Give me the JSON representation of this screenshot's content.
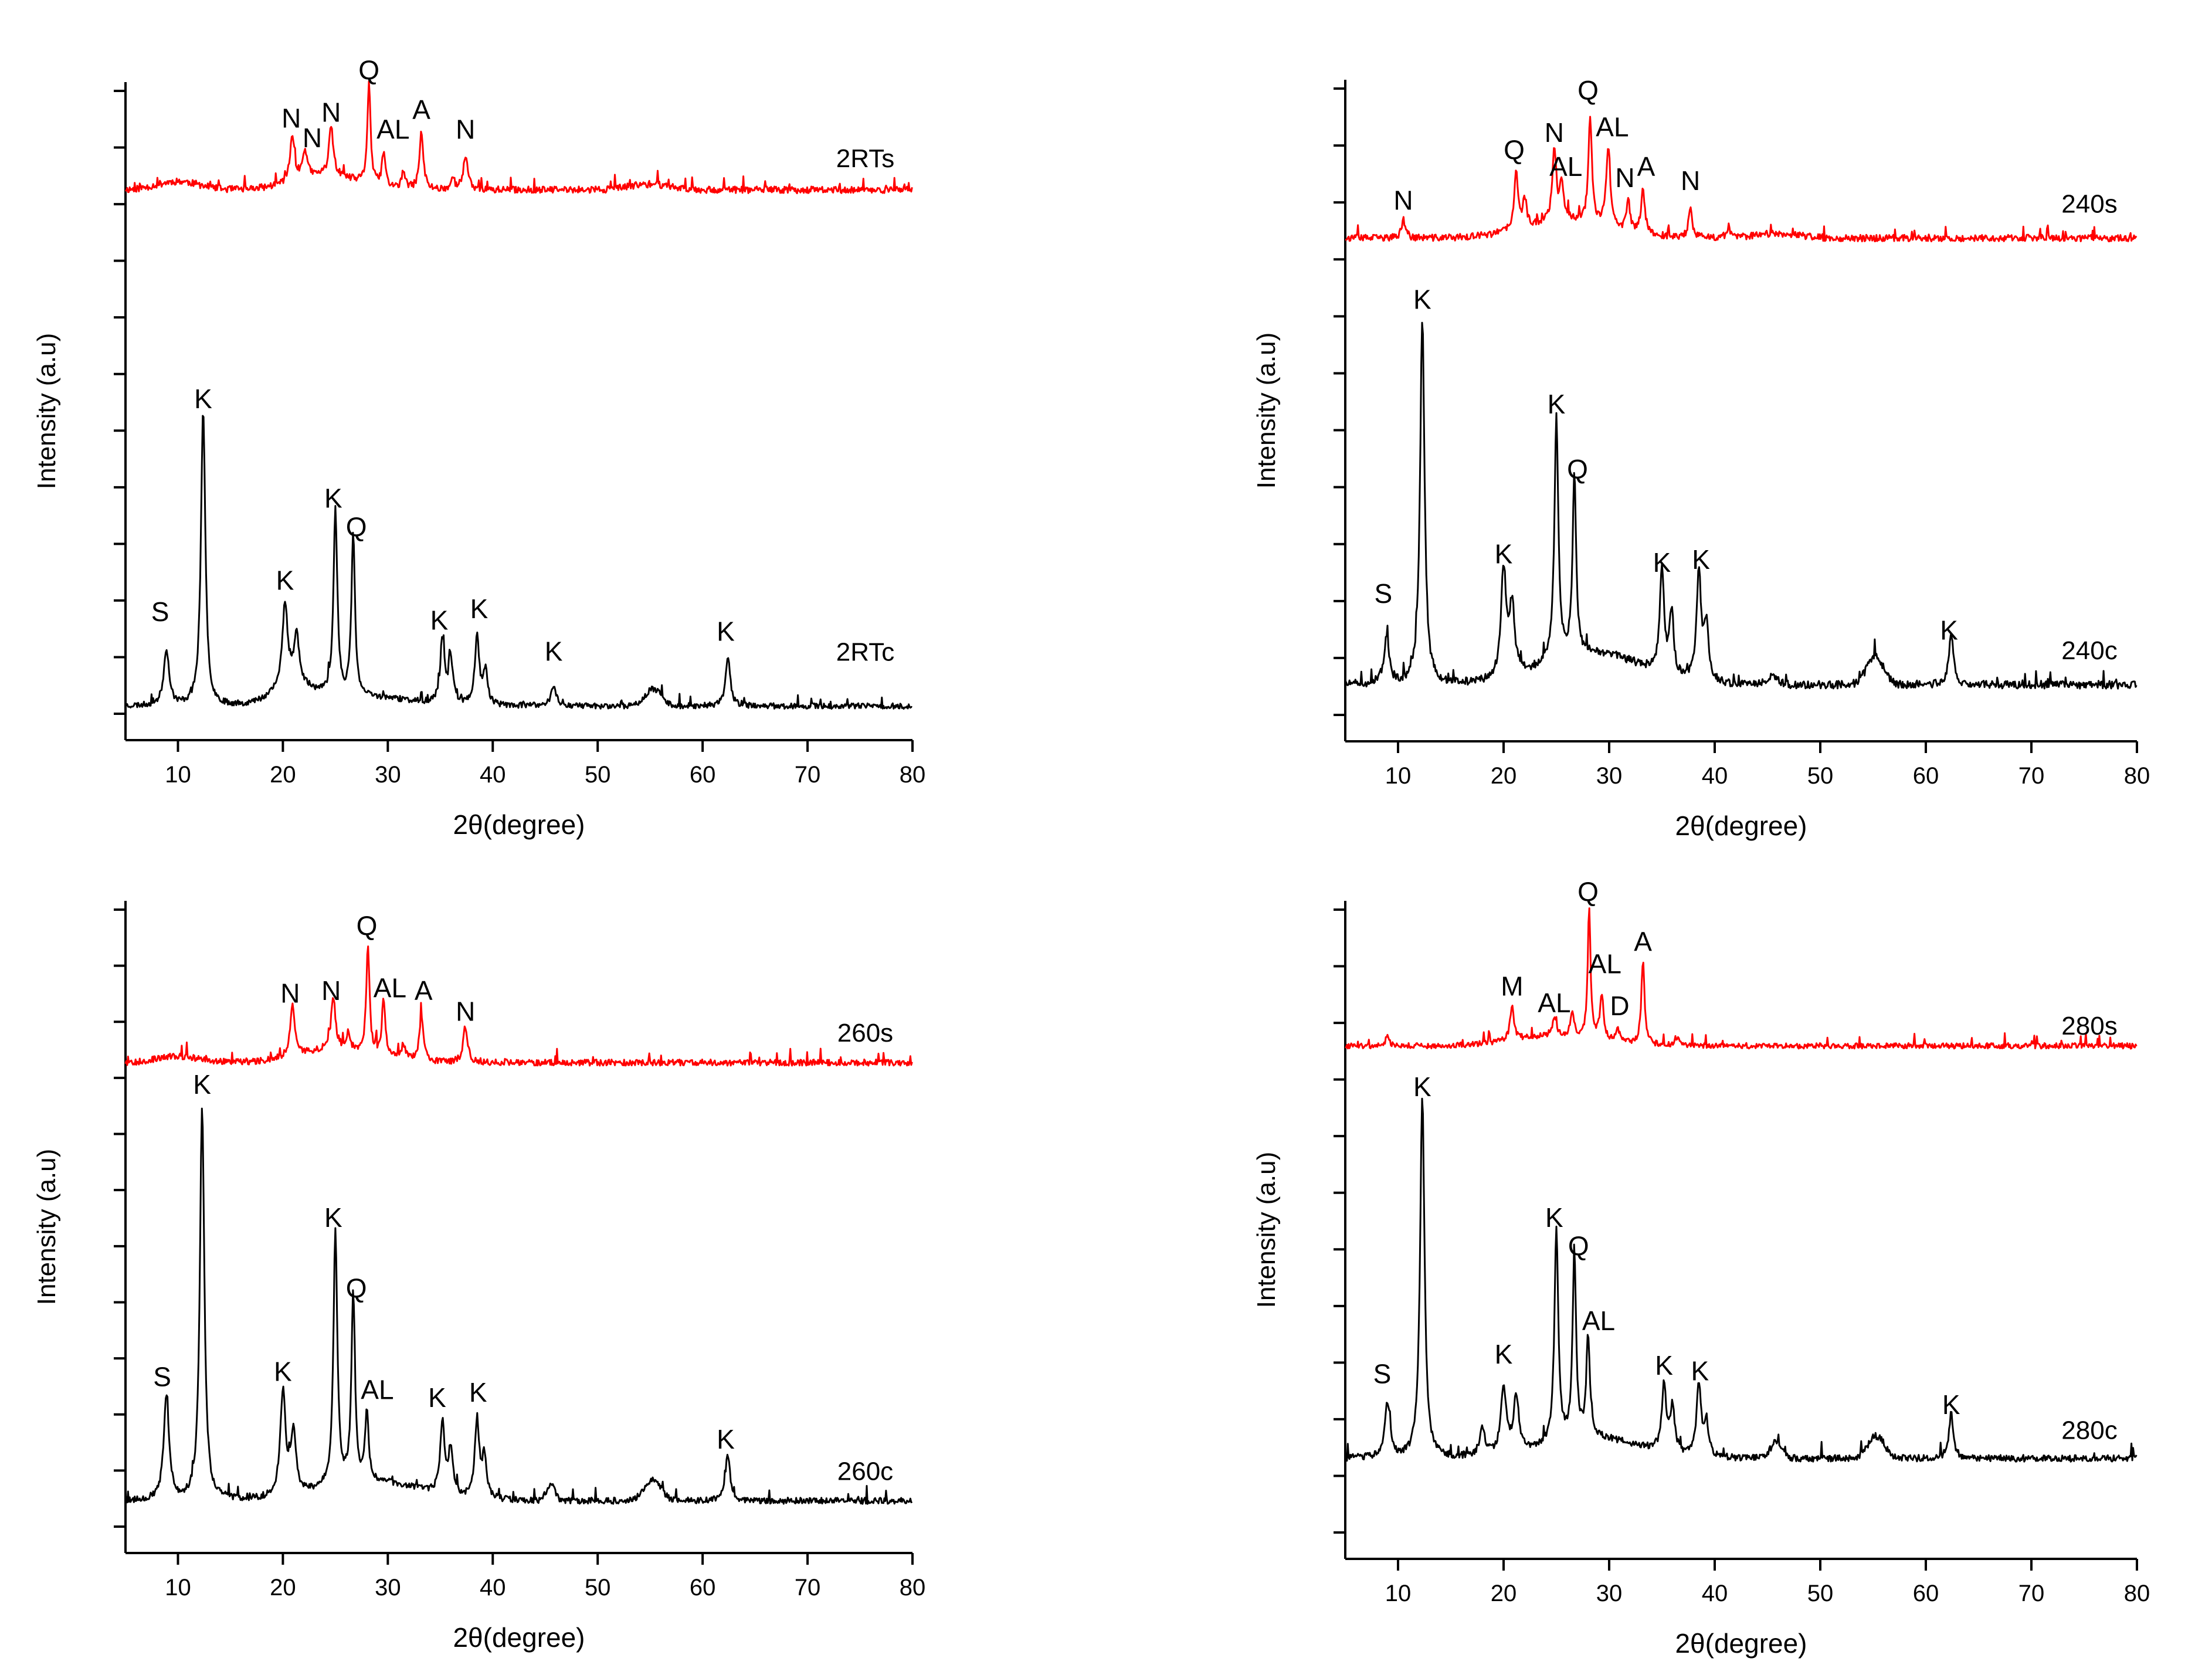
{
  "colors": {
    "top_series": "#ff0000",
    "bottom_series": "#000000",
    "axis": "#000000",
    "text": "#000000"
  },
  "chart_data": [
    {
      "type": "line",
      "panel": "top-left",
      "xlabel": "2θ(degree)",
      "ylabel": "Intensity (a.u)",
      "xlim": [
        5,
        80
      ],
      "ylim": [
        -0.6,
        11.0
      ],
      "x_ticks": [
        10,
        20,
        30,
        40,
        50,
        60,
        70,
        80
      ],
      "y_tick_count": 12,
      "series": [
        {
          "name": "2RTs",
          "color": "#ff0000",
          "base": 9.1,
          "noise": 0.06,
          "seed": 11,
          "label_at": [
            75.5,
            9.5
          ],
          "bumps": [
            [
              10,
              0.15,
              2.0
            ],
            [
              24,
              0.25,
              3.0
            ],
            [
              55,
              0.1,
              2.0
            ]
          ],
          "peaks": [
            {
              "x": 20.9,
              "h": 0.8,
              "w": 0.25,
              "label": "N",
              "lx": 20.8,
              "ly": 10.2
            },
            {
              "x": 22.1,
              "h": 0.5,
              "w": 0.25,
              "label": "N",
              "lx": 22.8,
              "ly": 9.85
            },
            {
              "x": 24.6,
              "h": 0.85,
              "w": 0.25,
              "label": "N",
              "lx": 24.6,
              "ly": 10.3
            },
            {
              "x": 28.2,
              "h": 1.8,
              "w": 0.18,
              "label": "Q",
              "lx": 28.2,
              "ly": 11.05
            },
            {
              "x": 29.6,
              "h": 0.6,
              "w": 0.2,
              "label": "AL",
              "lx": 30.5,
              "ly": 10.0
            },
            {
              "x": 33.2,
              "h": 1.0,
              "w": 0.22,
              "label": "A",
              "lx": 33.2,
              "ly": 10.35
            },
            {
              "x": 37.4,
              "h": 0.6,
              "w": 0.25,
              "label": "N",
              "lx": 37.4,
              "ly": 10.0
            },
            {
              "x": 31.5,
              "h": 0.3,
              "w": 0.2
            },
            {
              "x": 36.2,
              "h": 0.2,
              "w": 0.2
            }
          ]
        },
        {
          "name": "2RTc",
          "color": "#000000",
          "base": 0.0,
          "noise": 0.05,
          "seed": 23,
          "label_at": [
            75.5,
            0.8
          ],
          "bumps": [
            [
              21,
              0.3,
              2.0
            ],
            [
              28,
              0.15,
              4.0
            ],
            [
              55.3,
              0.3,
              0.8
            ]
          ],
          "peaks": [
            {
              "x": 8.9,
              "h": 1.0,
              "w": 0.3,
              "label": "S",
              "lx": 8.3,
              "ly": 1.5
            },
            {
              "x": 12.4,
              "h": 5.2,
              "w": 0.25,
              "label": "K",
              "lx": 12.4,
              "ly": 5.25
            },
            {
              "x": 20.2,
              "h": 1.5,
              "w": 0.3,
              "label": "K",
              "lx": 20.2,
              "ly": 2.05
            },
            {
              "x": 21.3,
              "h": 0.9,
              "w": 0.3
            },
            {
              "x": 25.0,
              "h": 3.3,
              "w": 0.22,
              "label": "K",
              "lx": 24.8,
              "ly": 3.5
            },
            {
              "x": 26.7,
              "h": 2.9,
              "w": 0.2,
              "label": "Q",
              "lx": 27.0,
              "ly": 3.0
            },
            {
              "x": 35.2,
              "h": 1.1,
              "w": 0.25,
              "label": "K",
              "lx": 34.9,
              "ly": 1.35
            },
            {
              "x": 36.0,
              "h": 0.8,
              "w": 0.25
            },
            {
              "x": 38.5,
              "h": 1.2,
              "w": 0.25,
              "label": "K",
              "lx": 38.7,
              "ly": 1.55
            },
            {
              "x": 39.3,
              "h": 0.6,
              "w": 0.25
            },
            {
              "x": 45.8,
              "h": 0.35,
              "w": 0.3,
              "label": "K",
              "lx": 45.8,
              "ly": 0.8
            },
            {
              "x": 62.4,
              "h": 0.9,
              "w": 0.25,
              "label": "K",
              "lx": 62.2,
              "ly": 1.15
            }
          ]
        }
      ]
    },
    {
      "type": "line",
      "panel": "top-right",
      "xlabel": "2θ(degree)",
      "ylabel": "Intensity (a.u)",
      "xlim": [
        5,
        80
      ],
      "ylim": [
        -1.0,
        10.7
      ],
      "x_ticks": [
        10,
        20,
        30,
        40,
        50,
        60,
        70,
        80
      ],
      "y_tick_count": 12,
      "series": [
        {
          "name": "240s",
          "color": "#ff0000",
          "base": 7.9,
          "noise": 0.06,
          "seed": 37,
          "label_at": [
            75.5,
            8.35
          ],
          "bumps": [
            [
              26,
              0.3,
              4.0
            ],
            [
              46,
              0.08,
              2.0
            ]
          ],
          "peaks": [
            {
              "x": 10.5,
              "h": 0.35,
              "w": 0.2,
              "label": "N",
              "lx": 10.5,
              "ly": 8.4
            },
            {
              "x": 21.2,
              "h": 1.0,
              "w": 0.22,
              "label": "Q",
              "lx": 21.0,
              "ly": 9.3
            },
            {
              "x": 22.0,
              "h": 0.5,
              "w": 0.2
            },
            {
              "x": 24.8,
              "h": 1.3,
              "w": 0.22,
              "label": "N",
              "lx": 24.8,
              "ly": 9.6
            },
            {
              "x": 25.5,
              "h": 0.7,
              "w": 0.2,
              "label": "AL",
              "lx": 25.9,
              "ly": 9.0
            },
            {
              "x": 28.2,
              "h": 1.9,
              "w": 0.2,
              "label": "Q",
              "lx": 28.0,
              "ly": 10.35
            },
            {
              "x": 29.9,
              "h": 1.4,
              "w": 0.22,
              "label": "AL",
              "lx": 30.3,
              "ly": 9.7
            },
            {
              "x": 31.8,
              "h": 0.55,
              "w": 0.2,
              "label": "N",
              "lx": 31.5,
              "ly": 8.8
            },
            {
              "x": 33.2,
              "h": 0.8,
              "w": 0.22,
              "label": "A",
              "lx": 33.5,
              "ly": 9.0
            },
            {
              "x": 37.7,
              "h": 0.55,
              "w": 0.2,
              "label": "N",
              "lx": 37.7,
              "ly": 8.75
            },
            {
              "x": 41.3,
              "h": 0.2,
              "w": 0.2
            }
          ]
        },
        {
          "name": "240c",
          "color": "#000000",
          "base": 0.0,
          "noise": 0.07,
          "seed": 51,
          "label_at": [
            75.5,
            0.45
          ],
          "bumps": [
            [
              28.5,
              0.55,
              4.5
            ],
            [
              55.2,
              0.5,
              0.8
            ],
            [
              45.5,
              0.15,
              0.5
            ]
          ],
          "peaks": [
            {
              "x": 8.9,
              "h": 0.8,
              "w": 0.3,
              "label": "S",
              "lx": 8.6,
              "ly": 1.45
            },
            {
              "x": 12.3,
              "h": 6.5,
              "w": 0.25,
              "label": "K",
              "lx": 12.3,
              "ly": 6.65
            },
            {
              "x": 20.0,
              "h": 1.9,
              "w": 0.3,
              "label": "K",
              "lx": 20.0,
              "ly": 2.15
            },
            {
              "x": 20.8,
              "h": 1.2,
              "w": 0.3
            },
            {
              "x": 25.0,
              "h": 4.3,
              "w": 0.22,
              "label": "K",
              "lx": 25.0,
              "ly": 4.8
            },
            {
              "x": 26.7,
              "h": 3.2,
              "w": 0.2,
              "label": "Q",
              "lx": 27.0,
              "ly": 3.65
            },
            {
              "x": 35.0,
              "h": 1.8,
              "w": 0.25,
              "label": "K",
              "lx": 35.0,
              "ly": 2.0
            },
            {
              "x": 35.9,
              "h": 1.0,
              "w": 0.25
            },
            {
              "x": 38.5,
              "h": 1.9,
              "w": 0.25,
              "label": "K",
              "lx": 38.7,
              "ly": 2.05
            },
            {
              "x": 39.2,
              "h": 1.0,
              "w": 0.25
            },
            {
              "x": 62.4,
              "h": 0.9,
              "w": 0.25,
              "label": "K",
              "lx": 62.2,
              "ly": 0.8
            }
          ]
        }
      ]
    },
    {
      "type": "line",
      "panel": "bottom-left",
      "xlabel": "2θ(degree)",
      "ylabel": "Intensity (a.u)",
      "xlim": [
        5,
        80
      ],
      "ylim": [
        -1.0,
        11.5
      ],
      "x_ticks": [
        10,
        20,
        30,
        40,
        50,
        60,
        70,
        80
      ],
      "y_tick_count": 12,
      "series": [
        {
          "name": "260s",
          "color": "#ff0000",
          "base": 8.4,
          "noise": 0.06,
          "seed": 67,
          "label_at": [
            75.5,
            8.8
          ],
          "bumps": [
            [
              10,
              0.12,
              2.0
            ],
            [
              25,
              0.25,
              3.5
            ]
          ],
          "peaks": [
            {
              "x": 20.9,
              "h": 1.0,
              "w": 0.25,
              "label": "N",
              "lx": 20.7,
              "ly": 9.55
            },
            {
              "x": 24.8,
              "h": 1.0,
              "w": 0.25,
              "label": "N",
              "lx": 24.6,
              "ly": 9.6
            },
            {
              "x": 28.1,
              "h": 2.1,
              "w": 0.18,
              "label": "Q",
              "lx": 28.0,
              "ly": 10.85
            },
            {
              "x": 29.6,
              "h": 1.1,
              "w": 0.2,
              "label": "AL",
              "lx": 30.2,
              "ly": 9.65
            },
            {
              "x": 33.2,
              "h": 0.9,
              "w": 0.22,
              "label": "A",
              "lx": 33.4,
              "ly": 9.6
            },
            {
              "x": 37.4,
              "h": 0.7,
              "w": 0.25,
              "label": "N",
              "lx": 37.4,
              "ly": 9.2
            },
            {
              "x": 31.5,
              "h": 0.3,
              "w": 0.2
            },
            {
              "x": 26.2,
              "h": 0.3,
              "w": 0.2
            }
          ]
        },
        {
          "name": "260c",
          "color": "#000000",
          "base": 0.0,
          "noise": 0.06,
          "seed": 79,
          "label_at": [
            75.5,
            0.4
          ],
          "bumps": [
            [
              28.5,
              0.35,
              4.5
            ],
            [
              55.2,
              0.4,
              0.8
            ],
            [
              45.5,
              0.3,
              0.4
            ]
          ],
          "peaks": [
            {
              "x": 8.9,
              "h": 2.0,
              "w": 0.3,
              "label": "S",
              "lx": 8.5,
              "ly": 2.2
            },
            {
              "x": 12.3,
              "h": 7.6,
              "w": 0.25,
              "label": "K",
              "lx": 12.3,
              "ly": 7.8
            },
            {
              "x": 20.0,
              "h": 2.0,
              "w": 0.3,
              "label": "K",
              "lx": 20.0,
              "ly": 2.3
            },
            {
              "x": 21.0,
              "h": 1.2,
              "w": 0.3
            },
            {
              "x": 25.0,
              "h": 4.9,
              "w": 0.22,
              "label": "K",
              "lx": 24.8,
              "ly": 5.25
            },
            {
              "x": 26.7,
              "h": 3.6,
              "w": 0.2,
              "label": "Q",
              "lx": 27.0,
              "ly": 3.9
            },
            {
              "x": 28.0,
              "h": 1.3,
              "w": 0.2,
              "label": "AL",
              "lx": 29.0,
              "ly": 1.95
            },
            {
              "x": 35.2,
              "h": 1.4,
              "w": 0.25,
              "label": "K",
              "lx": 34.7,
              "ly": 1.8
            },
            {
              "x": 36.0,
              "h": 0.9,
              "w": 0.25
            },
            {
              "x": 38.5,
              "h": 1.5,
              "w": 0.25,
              "label": "K",
              "lx": 38.6,
              "ly": 1.9
            },
            {
              "x": 39.2,
              "h": 0.8,
              "w": 0.25
            },
            {
              "x": 62.4,
              "h": 0.9,
              "w": 0.25,
              "label": "K",
              "lx": 62.2,
              "ly": 1.0
            }
          ]
        }
      ]
    },
    {
      "type": "line",
      "panel": "bottom-right",
      "xlabel": "2θ(degree)",
      "ylabel": "Intensity (a.u)",
      "xlim": [
        5,
        80
      ],
      "ylim": [
        -1.8,
        10.0
      ],
      "x_ticks": [
        10,
        20,
        30,
        40,
        50,
        60,
        70,
        80
      ],
      "y_tick_count": 12,
      "series": [
        {
          "name": "280s",
          "color": "#ff0000",
          "base": 7.4,
          "noise": 0.05,
          "seed": 91,
          "label_at": [
            75.5,
            7.6
          ],
          "bumps": [
            [
              25,
              0.18,
              4.0
            ]
          ],
          "peaks": [
            {
              "x": 9.0,
              "h": 0.2,
              "w": 0.2
            },
            {
              "x": 20.8,
              "h": 0.6,
              "w": 0.22,
              "label": "M",
              "lx": 20.8,
              "ly": 8.3
            },
            {
              "x": 24.8,
              "h": 0.35,
              "w": 0.2,
              "label": "AL",
              "lx": 24.8,
              "ly": 8.0
            },
            {
              "x": 26.5,
              "h": 0.4,
              "w": 0.2
            },
            {
              "x": 28.1,
              "h": 2.3,
              "w": 0.16,
              "label": "Q",
              "lx": 28.0,
              "ly": 10.0
            },
            {
              "x": 29.3,
              "h": 0.8,
              "w": 0.2,
              "label": "AL",
              "lx": 29.6,
              "ly": 8.7
            },
            {
              "x": 30.8,
              "h": 0.25,
              "w": 0.2,
              "label": "D",
              "lx": 31.0,
              "ly": 7.95
            },
            {
              "x": 33.2,
              "h": 1.5,
              "w": 0.18,
              "label": "A",
              "lx": 33.2,
              "ly": 9.1
            },
            {
              "x": 36.4,
              "h": 0.15,
              "w": 0.2
            }
          ]
        },
        {
          "name": "280c",
          "color": "#000000",
          "base": 0.0,
          "noise": 0.06,
          "seed": 103,
          "label_at": [
            75.5,
            0.35
          ],
          "bumps": [
            [
              28.5,
              0.35,
              4.5
            ],
            [
              55.3,
              0.4,
              0.8
            ],
            [
              45.8,
              0.3,
              0.5
            ]
          ],
          "peaks": [
            {
              "x": 9.0,
              "h": 1.0,
              "w": 0.3,
              "label": "S",
              "lx": 8.5,
              "ly": 1.35
            },
            {
              "x": 12.3,
              "h": 6.5,
              "w": 0.25,
              "label": "K",
              "lx": 12.3,
              "ly": 6.5
            },
            {
              "x": 18.0,
              "h": 0.5,
              "w": 0.3
            },
            {
              "x": 20.0,
              "h": 1.2,
              "w": 0.3,
              "label": "K",
              "lx": 20.0,
              "ly": 1.7
            },
            {
              "x": 21.2,
              "h": 1.0,
              "w": 0.3
            },
            {
              "x": 25.0,
              "h": 3.8,
              "w": 0.22,
              "label": "K",
              "lx": 24.8,
              "ly": 4.15
            },
            {
              "x": 26.7,
              "h": 3.3,
              "w": 0.2,
              "label": "Q",
              "lx": 27.1,
              "ly": 3.65
            },
            {
              "x": 28.0,
              "h": 1.8,
              "w": 0.2,
              "label": "AL",
              "lx": 29.0,
              "ly": 2.3
            },
            {
              "x": 35.2,
              "h": 1.2,
              "w": 0.25,
              "label": "K",
              "lx": 35.2,
              "ly": 1.5
            },
            {
              "x": 36.0,
              "h": 0.8,
              "w": 0.25
            },
            {
              "x": 38.5,
              "h": 1.3,
              "w": 0.25,
              "label": "K",
              "lx": 38.6,
              "ly": 1.4
            },
            {
              "x": 39.2,
              "h": 0.6,
              "w": 0.25
            },
            {
              "x": 62.4,
              "h": 0.8,
              "w": 0.25,
              "label": "K",
              "lx": 62.4,
              "ly": 0.8
            }
          ]
        }
      ]
    }
  ]
}
